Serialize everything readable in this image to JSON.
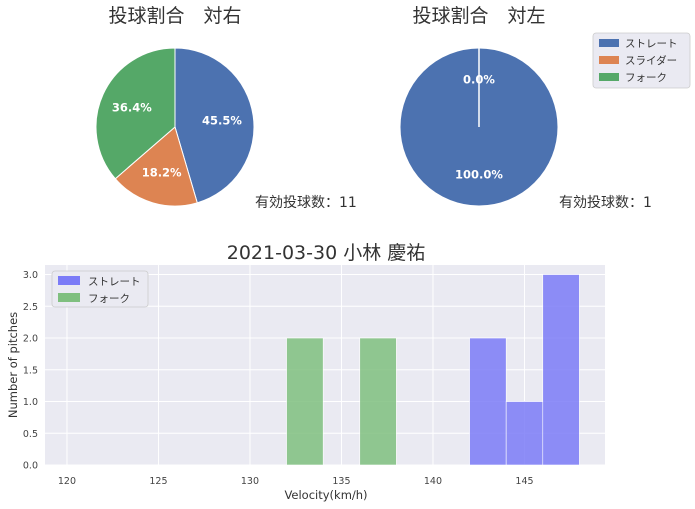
{
  "colors": {
    "straight": "#4c72b0",
    "slider": "#dd8452",
    "fork": "#55a868",
    "hist_straight": "#7b7bf7",
    "hist_fork": "#7fbf7f",
    "plot_bg": "#eaeaf2",
    "grid": "#ffffff"
  },
  "chart_data": [
    {
      "type": "pie",
      "title": "投球割合　対右",
      "labels": [
        "ストレート",
        "スライダー",
        "フォーク"
      ],
      "values": [
        45.5,
        18.2,
        36.4
      ],
      "value_labels": [
        "45.5%",
        "18.2%",
        "36.4%"
      ],
      "start_angle_deg": 90,
      "direction": "clockwise",
      "annotation": "有効投球数：11"
    },
    {
      "type": "pie",
      "title": "投球割合　対左",
      "labels": [
        "ストレート",
        "フォーク"
      ],
      "values": [
        100.0,
        0.0
      ],
      "value_labels": [
        "100.0%",
        "0.0%"
      ],
      "start_angle_deg": 90,
      "direction": "clockwise",
      "annotation": "有効投球数：1",
      "legend": {
        "placement": "upper-right outside",
        "entries": [
          "ストレート",
          "スライダー",
          "フォーク"
        ]
      }
    },
    {
      "type": "bar",
      "subtype": "histogram",
      "title": "2021-03-30 小林 慶祐",
      "xlabel": "Velocity(km/h)",
      "ylabel": "Number of pitches",
      "xlim": [
        118.8,
        149.4
      ],
      "ylim": [
        0,
        3.15
      ],
      "xticks": [
        120,
        125,
        130,
        135,
        140,
        145
      ],
      "xtick_labels": [
        "120",
        "125",
        "130",
        "135",
        "140",
        "145"
      ],
      "yticks": [
        0,
        0.5,
        1.0,
        1.5,
        2.0,
        2.5,
        3.0
      ],
      "ytick_labels": [
        "0.0",
        "0.5",
        "1.0",
        "1.5",
        "2.0",
        "2.5",
        "3.0"
      ],
      "grid": true,
      "legend": {
        "placement": "top-left"
      },
      "series": [
        {
          "name": "ストレート",
          "color_key": "hist_straight",
          "bins": [
            {
              "x0": 142,
              "x1": 144,
              "count": 2
            },
            {
              "x0": 144,
              "x1": 146,
              "count": 1
            },
            {
              "x0": 146,
              "x1": 148,
              "count": 3
            }
          ]
        },
        {
          "name": "フォーク",
          "color_key": "hist_fork",
          "bins": [
            {
              "x0": 132,
              "x1": 134,
              "count": 2
            },
            {
              "x0": 136,
              "x1": 138,
              "count": 2
            }
          ]
        }
      ]
    }
  ]
}
